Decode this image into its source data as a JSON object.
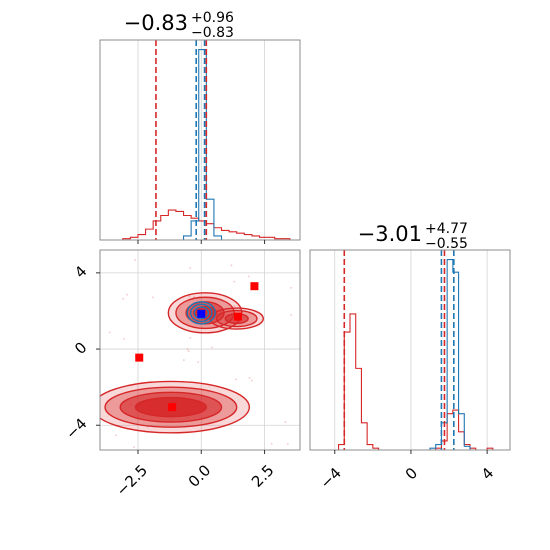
{
  "chart_data": [
    {
      "panel": "top-left",
      "type": "step-histogram",
      "title": {
        "main": "−0.83",
        "sup": "+0.96",
        "sub": "−0.83"
      },
      "xlim": [
        -4.0,
        3.9
      ],
      "grid": true,
      "show_tick_labels": false,
      "xticks": [
        -2.5,
        0.0,
        2.5
      ],
      "bins_x": [
        -4.0,
        -3.7,
        -3.4,
        -3.1,
        -2.8,
        -2.5,
        -2.2,
        -1.9,
        -1.6,
        -1.3,
        -1.0,
        -0.7,
        -0.4,
        -0.1,
        0.2,
        0.5,
        0.8,
        1.1,
        1.4,
        1.7,
        2.0,
        2.3,
        2.6,
        2.9,
        3.2,
        3.5,
        3.8
      ],
      "series": [
        {
          "color": "#d62728",
          "counts": [
            0,
            0,
            0,
            1,
            2,
            4,
            8,
            14,
            18,
            22,
            21,
            18,
            16,
            14,
            12,
            9,
            7,
            6,
            5,
            4,
            3,
            2,
            2,
            1,
            1,
            0
          ]
        },
        {
          "color": "#1f77b4",
          "counts": [
            0,
            0,
            0,
            0,
            0,
            0,
            0,
            0,
            0,
            0,
            0,
            3,
            14,
            140,
            30,
            3,
            0,
            0,
            0,
            0,
            0,
            0,
            0,
            0,
            0,
            0
          ]
        }
      ],
      "vlines": [
        {
          "x": -1.79,
          "color": "#d62728"
        },
        {
          "x": -0.2,
          "color": "#1f77b4"
        },
        {
          "x": 0.13,
          "color": "#1f77b4"
        },
        {
          "x": 0.2,
          "color": "#d62728"
        }
      ]
    },
    {
      "panel": "bottom-left",
      "type": "contour",
      "xlim": [
        -4.0,
        3.9
      ],
      "ylim": [
        -5.3,
        5.2
      ],
      "grid": true,
      "xticks": [
        -2.5,
        0.0,
        2.5
      ],
      "xtick_labels": [
        "−2.5",
        "0.0",
        "2.5"
      ],
      "yticks": [
        -4,
        0,
        4
      ],
      "ytick_labels": [
        "−4",
        "0",
        "4"
      ],
      "red_modes": [
        {
          "cx": -1.2,
          "cy": -3.05,
          "rx": [
            3.1,
            2.6,
            2.0,
            1.4
          ],
          "ry": [
            1.35,
            1.05,
            0.78,
            0.5
          ]
        },
        {
          "cx": 0.15,
          "cy": 1.9,
          "rx": [
            1.45,
            1.15,
            0.75,
            0.45
          ],
          "ry": [
            1.05,
            0.82,
            0.58,
            0.32
          ]
        }
      ],
      "red_extension": {
        "cx": 1.4,
        "cy": 1.6,
        "rx": [
          1.05,
          0.8,
          0.45
        ],
        "ry": [
          0.55,
          0.42,
          0.25
        ]
      },
      "blue_mode": {
        "cx": 0.0,
        "cy": 1.9,
        "rx": [
          0.55,
          0.42,
          0.28
        ],
        "ry": [
          0.58,
          0.45,
          0.3
        ]
      },
      "red_points": [
        {
          "x": -2.45,
          "y": -0.45
        },
        {
          "x": 2.1,
          "y": 3.3
        },
        {
          "x": 1.45,
          "y": 1.7
        },
        {
          "x": -1.15,
          "y": -3.05
        }
      ],
      "blue_points": [
        {
          "x": 0.0,
          "y": 1.85
        }
      ]
    },
    {
      "panel": "bottom-right",
      "type": "step-histogram",
      "title": {
        "main": "−3.01",
        "sup": "+4.77",
        "sub": "−0.55"
      },
      "xlim": [
        -5.3,
        5.2
      ],
      "grid": true,
      "xticks": [
        -4,
        0,
        4
      ],
      "xtick_labels": [
        "−4",
        "0",
        "4"
      ],
      "bins_x": [
        -5.3,
        -5.0,
        -4.7,
        -4.4,
        -4.1,
        -3.8,
        -3.5,
        -3.2,
        -2.9,
        -2.6,
        -2.3,
        -2.0,
        -1.7,
        -1.4,
        -1.1,
        -0.8,
        -0.5,
        -0.2,
        0.1,
        0.4,
        0.7,
        1.0,
        1.3,
        1.6,
        1.9,
        2.2,
        2.5,
        2.8,
        3.1,
        3.4,
        3.7,
        4.0,
        4.3,
        4.6,
        4.9
      ],
      "series": [
        {
          "color": "#d62728",
          "counts": [
            0,
            0,
            0,
            0,
            0,
            3,
            65,
            75,
            45,
            15,
            3,
            1,
            0,
            0,
            0,
            0,
            0,
            0,
            0,
            0,
            0,
            0,
            1,
            5,
            20,
            22,
            10,
            3,
            1,
            0,
            0,
            1,
            0,
            0
          ]
        },
        {
          "color": "#1f77b4",
          "counts": [
            0,
            0,
            0,
            0,
            0,
            0,
            0,
            0,
            0,
            0,
            0,
            0,
            0,
            0,
            0,
            0,
            0,
            0,
            0,
            0,
            0,
            1,
            3,
            15,
            105,
            98,
            20,
            2,
            0,
            0,
            0,
            0,
            0,
            0
          ]
        }
      ],
      "vlines": [
        {
          "x": -3.5,
          "color": "#d62728"
        },
        {
          "x": 1.6,
          "color": "#1f77b4"
        },
        {
          "x": 1.76,
          "color": "#d62728"
        },
        {
          "x": 2.25,
          "color": "#1f77b4"
        }
      ]
    }
  ]
}
